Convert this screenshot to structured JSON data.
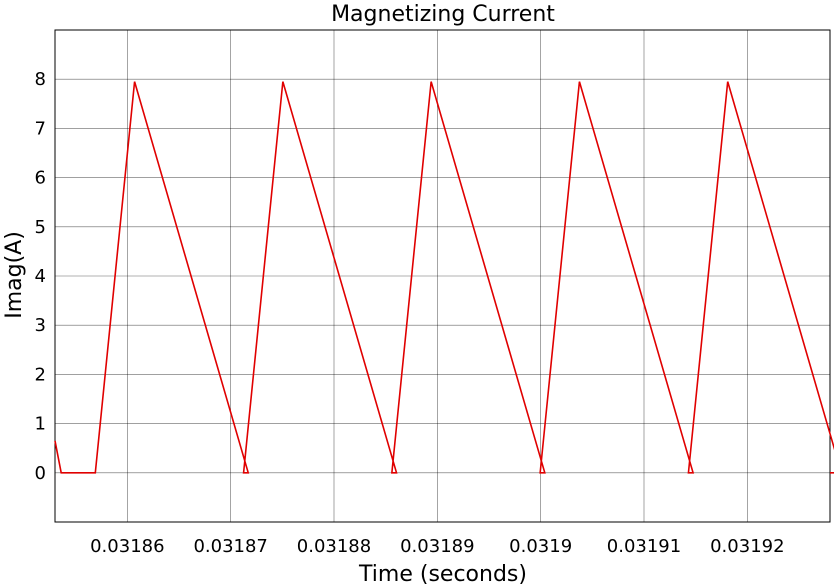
{
  "chart_data": {
    "type": "line",
    "title": "Magnetizing Current",
    "xlabel": "Time (seconds)",
    "ylabel": "Imag(A)",
    "xlim": [
      0.031853,
      0.031928
    ],
    "ylim": [
      -1,
      9
    ],
    "grid": true,
    "x_ticks": [
      0.03186,
      0.03187,
      0.03188,
      0.03189,
      0.0319,
      0.03191,
      0.03192
    ],
    "x_tick_labels": [
      "0.03186",
      "0.03187",
      "0.03188",
      "0.03189",
      "0.0319",
      "0.03191",
      "0.03192"
    ],
    "y_ticks": [
      0,
      1,
      2,
      3,
      4,
      5,
      6,
      7,
      8
    ],
    "y_tick_labels": [
      "0",
      "1",
      "2",
      "3",
      "4",
      "5",
      "6",
      "7",
      "8"
    ],
    "series": [
      {
        "color": "#e00000",
        "x": [
          0.031853,
          0.0318536,
          0.0318569,
          0.0318607,
          0.0318717,
          0.0318751,
          0.0318751,
          0.0318751,
          0.0318751,
          0.0318751,
          0.0318751,
          0.0318751,
          0.0318751,
          0.0318751,
          0.0318751
        ],
        "y": [
          0.65,
          0,
          0,
          7.95,
          0,
          0,
          0,
          0,
          0,
          0,
          0,
          0,
          0,
          0,
          0
        ]
      }
    ],
    "waveform": {
      "first_zero_start": 0.0318536,
      "period": 1.435e-05,
      "zero_duration": 3.3e-06,
      "rise_duration": 3.8e-06,
      "fall_duration": 1.1e-05,
      "peak": 7.95,
      "start_value": 0.65,
      "cycles": 5
    }
  }
}
